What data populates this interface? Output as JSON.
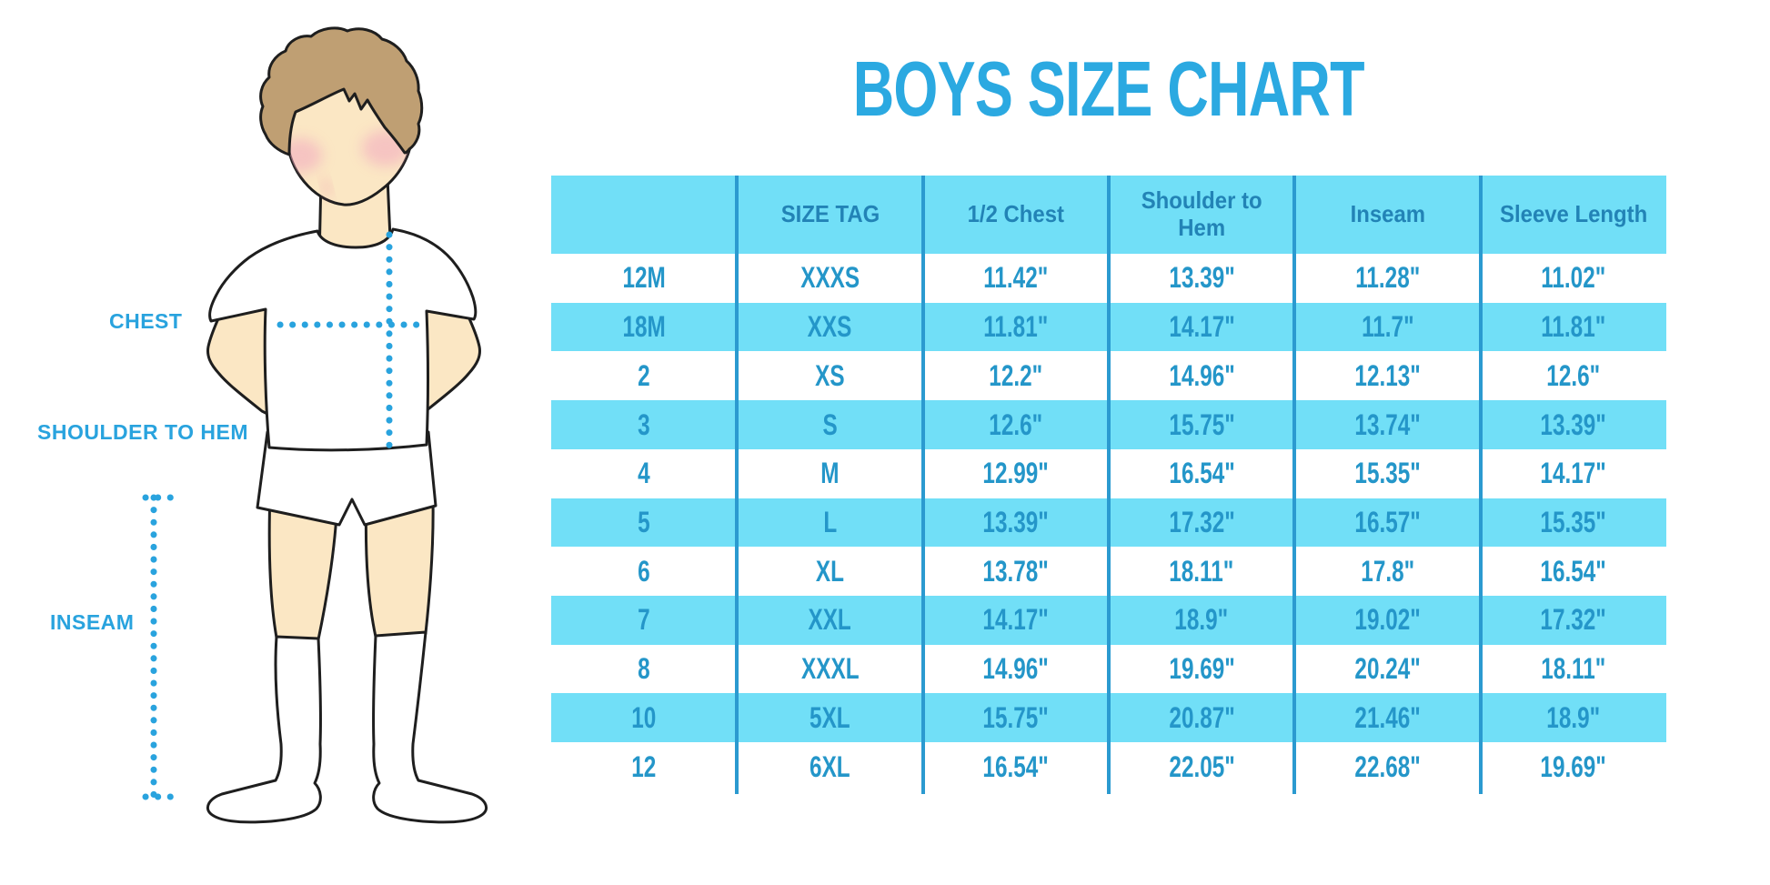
{
  "figure_labels": {
    "chest": "CHEST",
    "shoulder_to_hem": "SHOULDER TO HEM",
    "inseam": "INSEAM"
  },
  "colors": {
    "accent_blue": "#29A3DE",
    "title_blue": "#2BA9E1",
    "table_cyan": "#71DFF7",
    "divider_blue": "#2B9AD0",
    "header_text": "#2283B6",
    "cell_text": "#2496C9",
    "skin": "#FBE7C4",
    "hair": "#BF9F73",
    "cheek": "#F2A8C0",
    "outline": "#1E1E1E"
  },
  "chart_data": {
    "type": "table",
    "title": "BOYS SIZE CHART",
    "columns": [
      "",
      "SIZE TAG",
      "1/2 Chest",
      "Shoulder to Hem",
      "Inseam",
      "Sleeve Length"
    ],
    "rows": [
      [
        "12M",
        "XXXS",
        "11.42\"",
        "13.39\"",
        "11.28\"",
        "11.02\""
      ],
      [
        "18M",
        "XXS",
        "11.81\"",
        "14.17\"",
        "11.7\"",
        "11.81\""
      ],
      [
        "2",
        "XS",
        "12.2\"",
        "14.96\"",
        "12.13\"",
        "12.6\""
      ],
      [
        "3",
        "S",
        "12.6\"",
        "15.75\"",
        "13.74\"",
        "13.39\""
      ],
      [
        "4",
        "M",
        "12.99\"",
        "16.54\"",
        "15.35\"",
        "14.17\""
      ],
      [
        "5",
        "L",
        "13.39\"",
        "17.32\"",
        "16.57\"",
        "15.35\""
      ],
      [
        "6",
        "XL",
        "13.78\"",
        "18.11\"",
        "17.8\"",
        "16.54\""
      ],
      [
        "7",
        "XXL",
        "14.17\"",
        "18.9\"",
        "19.02\"",
        "17.32\""
      ],
      [
        "8",
        "XXXL",
        "14.96\"",
        "19.69\"",
        "20.24\"",
        "18.11\""
      ],
      [
        "10",
        "5XL",
        "15.75\"",
        "20.87\"",
        "21.46\"",
        "18.9\""
      ],
      [
        "12",
        "6XL",
        "16.54\"",
        "22.05\"",
        "22.68\"",
        "19.69\""
      ]
    ]
  }
}
